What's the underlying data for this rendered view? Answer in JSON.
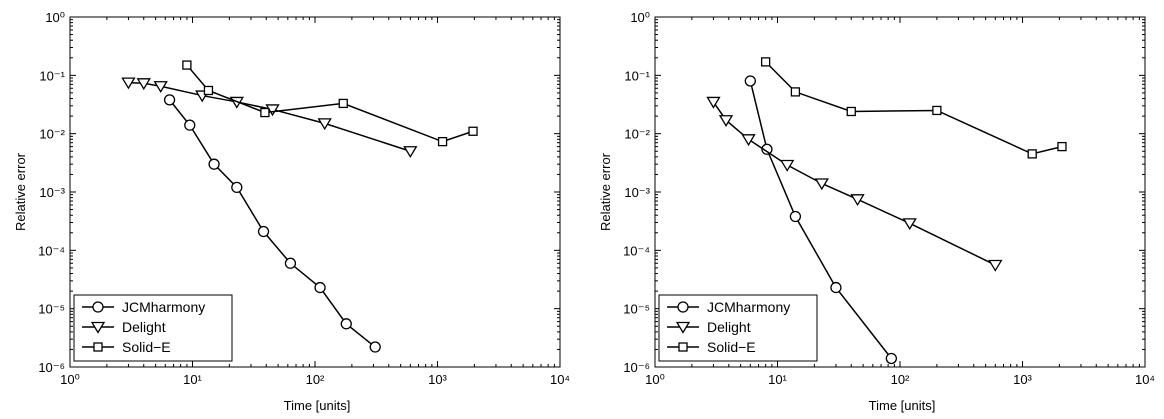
{
  "chart_data": [
    {
      "type": "line",
      "xlabel": "Time [units]",
      "ylabel": "Relative error",
      "xscale": "log",
      "yscale": "log",
      "xlim": [
        1,
        10000
      ],
      "ylim": [
        1e-06,
        1
      ],
      "grid": false,
      "legend_position": "bottom-left",
      "xticks": [
        1,
        10,
        100,
        1000,
        10000
      ],
      "yticks": [
        1e-06,
        1e-05,
        0.0001,
        0.001,
        0.01,
        0.1,
        1
      ],
      "series": [
        {
          "name": "JCMharmony",
          "marker": "circle",
          "x": [
            6.5,
            9.5,
            15,
            23,
            38,
            63,
            110,
            180,
            310
          ],
          "y": [
            0.038,
            0.014,
            0.003,
            0.0012,
            0.00021,
            6e-05,
            2.3e-05,
            5.5e-06,
            2.2e-06
          ]
        },
        {
          "name": "Delight",
          "marker": "triangle-down",
          "x": [
            3,
            4,
            5.5,
            12,
            23,
            45,
            120,
            600
          ],
          "y": [
            0.075,
            0.073,
            0.065,
            0.045,
            0.035,
            0.026,
            0.015,
            0.005
          ]
        },
        {
          "name": "Solid−E",
          "marker": "square",
          "x": [
            9,
            13.5,
            39,
            170,
            1100,
            1950
          ],
          "y": [
            0.15,
            0.055,
            0.023,
            0.033,
            0.0073,
            0.011
          ]
        }
      ]
    },
    {
      "type": "line",
      "xlabel": "Time [units]",
      "ylabel": "Relative error",
      "xscale": "log",
      "yscale": "log",
      "xlim": [
        1,
        10000
      ],
      "ylim": [
        1e-06,
        1
      ],
      "grid": false,
      "legend_position": "bottom-left",
      "xticks": [
        1,
        10,
        100,
        1000,
        10000
      ],
      "yticks": [
        1e-06,
        1e-05,
        0.0001,
        0.001,
        0.01,
        0.1,
        1
      ],
      "series": [
        {
          "name": "JCMharmony",
          "marker": "circle",
          "x": [
            6,
            8.2,
            14,
            30,
            85
          ],
          "y": [
            0.08,
            0.0054,
            0.00038,
            2.3e-05,
            1.4e-06
          ]
        },
        {
          "name": "Delight",
          "marker": "triangle-down",
          "x": [
            3,
            3.8,
            5.8,
            12,
            23,
            45,
            120,
            600
          ],
          "y": [
            0.035,
            0.017,
            0.008,
            0.0029,
            0.0014,
            0.00075,
            0.00029,
            5.6e-05
          ]
        },
        {
          "name": "Solid−E",
          "marker": "square",
          "x": [
            8,
            14,
            40,
            200,
            1200,
            2100
          ],
          "y": [
            0.17,
            0.052,
            0.024,
            0.025,
            0.0045,
            0.006
          ]
        }
      ]
    }
  ]
}
